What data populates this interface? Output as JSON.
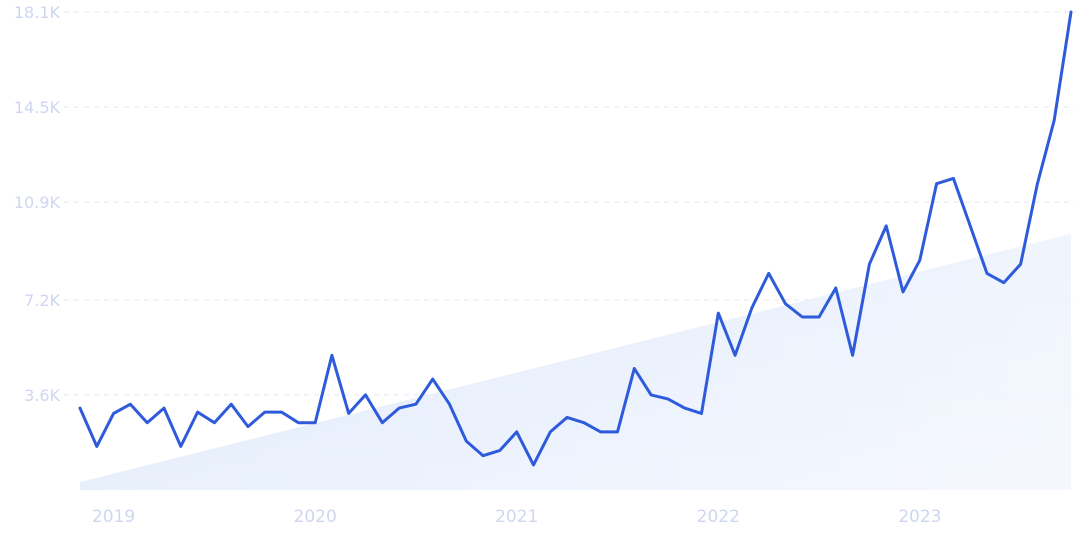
{
  "chart_data": {
    "type": "line",
    "title": "",
    "xlabel": "",
    "ylabel": "",
    "ylim": [
      0,
      18100
    ],
    "y_ticks": [
      {
        "value": 3600,
        "label": "3.6K"
      },
      {
        "value": 7200,
        "label": "7.2K"
      },
      {
        "value": 10900,
        "label": "10.9K"
      },
      {
        "value": 14500,
        "label": "14.5K"
      },
      {
        "value": 18100,
        "label": "18.1K"
      }
    ],
    "x_ticks": [
      {
        "value": 2.0,
        "label": "2019"
      },
      {
        "value": 14.0,
        "label": "2020"
      },
      {
        "value": 26.0,
        "label": "2021"
      },
      {
        "value": 38.0,
        "label": "2022"
      },
      {
        "value": 50.0,
        "label": "2023"
      }
    ],
    "grid": true,
    "colors": {
      "line": "#2e5bdb",
      "trend": "#dbe7fb",
      "grid": "#e3e7f3",
      "ticks": "#cfd6f0"
    },
    "trend": {
      "x": [
        0,
        59
      ],
      "y": [
        300,
        9700
      ]
    },
    "series": [
      {
        "values": [
          3100,
          1650,
          2900,
          3250,
          2550,
          3100,
          1650,
          2950,
          2550,
          3250,
          2400,
          2950,
          2950,
          2550,
          2550,
          5100,
          2900,
          3600,
          2550,
          3100,
          3250,
          4200,
          3250,
          1850,
          1300,
          1500,
          2200,
          950,
          2200,
          2750,
          2550,
          2200,
          2200,
          4600,
          3600,
          3450,
          3100,
          2900,
          6700,
          5100,
          6900,
          8200,
          7050,
          6550,
          6550,
          7650,
          5100,
          8550,
          10000,
          7500,
          8700,
          11600,
          11800,
          10000,
          8200,
          7850,
          8550,
          11600,
          14000,
          18100
        ]
      }
    ]
  }
}
